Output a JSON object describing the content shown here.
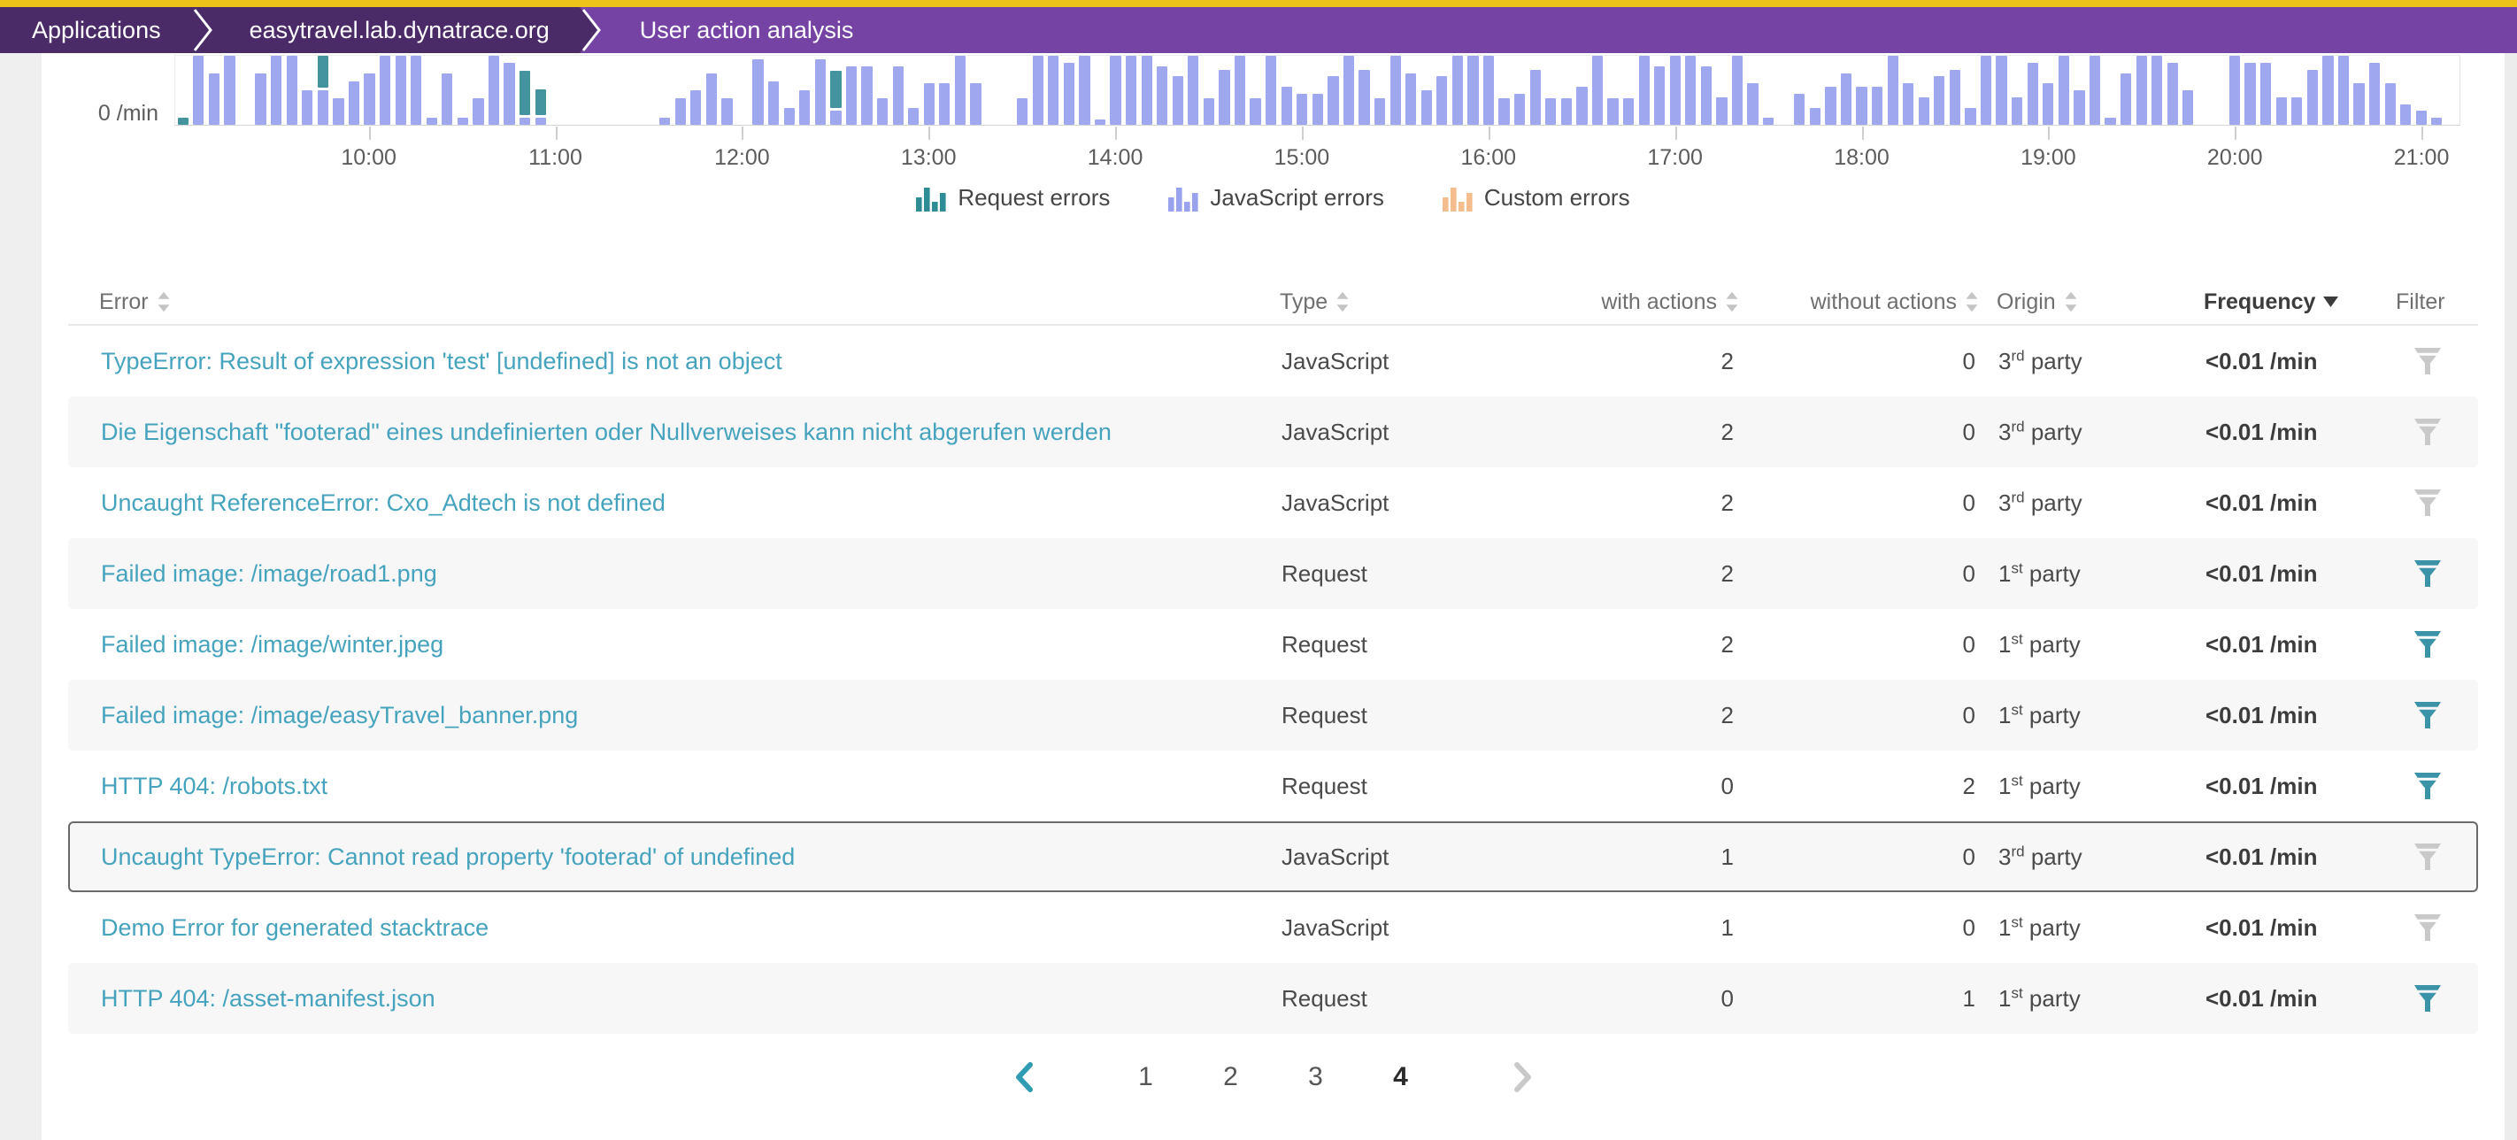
{
  "breadcrumb": {
    "items": [
      {
        "label": "Applications"
      },
      {
        "label": "easytravel.lab.dynatrace.org"
      },
      {
        "label": "User action analysis"
      }
    ]
  },
  "colors": {
    "accent_top": "#edc31a",
    "crumb_dark": "#4b2a68",
    "crumb_active": "#7543a3",
    "javascript_bar": "#9fa8ef",
    "request_bar": "#44949f",
    "custom_bar": "#f3bd8d",
    "link": "#45a3bd",
    "filter_active": "#3a93a6",
    "filter_inactive": "#c9c9c9"
  },
  "chart_data": {
    "type": "bar",
    "stacked": true,
    "y_zero_label": "0 /min",
    "x_ticks": [
      "10:00",
      "11:00",
      "12:00",
      "13:00",
      "14:00",
      "15:00",
      "16:00",
      "17:00",
      "18:00",
      "19:00",
      "20:00",
      "21:00"
    ],
    "series_names": [
      "JavaScript errors",
      "Request errors"
    ],
    "values_unit": "relative_height_pct",
    "bars": [
      [
        0,
        10
      ],
      [
        100,
        0
      ],
      [
        75,
        0
      ],
      [
        100,
        0
      ],
      [
        0,
        0
      ],
      [
        75,
        0
      ],
      [
        100,
        0
      ],
      [
        100,
        0
      ],
      [
        50,
        0
      ],
      [
        50,
        47
      ],
      [
        38,
        0
      ],
      [
        63,
        0
      ],
      [
        75,
        0
      ],
      [
        100,
        0
      ],
      [
        100,
        0
      ],
      [
        100,
        0
      ],
      [
        10,
        0
      ],
      [
        75,
        0
      ],
      [
        10,
        0
      ],
      [
        38,
        0
      ],
      [
        100,
        0
      ],
      [
        90,
        0
      ],
      [
        10,
        65
      ],
      [
        10,
        38
      ],
      [
        0,
        0
      ],
      [
        0,
        0
      ],
      [
        0,
        0
      ],
      [
        0,
        0
      ],
      [
        0,
        0
      ],
      [
        0,
        0
      ],
      [
        0,
        0
      ],
      [
        10,
        0
      ],
      [
        38,
        0
      ],
      [
        50,
        0
      ],
      [
        75,
        0
      ],
      [
        38,
        0
      ],
      [
        0,
        0
      ],
      [
        95,
        0
      ],
      [
        63,
        0
      ],
      [
        25,
        0
      ],
      [
        50,
        0
      ],
      [
        95,
        0
      ],
      [
        20,
        55
      ],
      [
        85,
        0
      ],
      [
        85,
        0
      ],
      [
        38,
        0
      ],
      [
        85,
        0
      ],
      [
        25,
        0
      ],
      [
        60,
        0
      ],
      [
        60,
        0
      ],
      [
        100,
        0
      ],
      [
        60,
        0
      ],
      [
        0,
        0
      ],
      [
        0,
        0
      ],
      [
        38,
        0
      ],
      [
        100,
        0
      ],
      [
        100,
        0
      ],
      [
        90,
        0
      ],
      [
        100,
        0
      ],
      [
        8,
        0
      ],
      [
        100,
        0
      ],
      [
        100,
        0
      ],
      [
        100,
        0
      ],
      [
        85,
        0
      ],
      [
        70,
        0
      ],
      [
        100,
        0
      ],
      [
        38,
        0
      ],
      [
        80,
        0
      ],
      [
        100,
        0
      ],
      [
        38,
        0
      ],
      [
        100,
        0
      ],
      [
        55,
        0
      ],
      [
        45,
        0
      ],
      [
        45,
        0
      ],
      [
        70,
        0
      ],
      [
        100,
        0
      ],
      [
        80,
        0
      ],
      [
        38,
        0
      ],
      [
        100,
        0
      ],
      [
        75,
        0
      ],
      [
        50,
        0
      ],
      [
        70,
        0
      ],
      [
        100,
        0
      ],
      [
        100,
        0
      ],
      [
        100,
        0
      ],
      [
        38,
        0
      ],
      [
        45,
        0
      ],
      [
        80,
        0
      ],
      [
        38,
        0
      ],
      [
        38,
        0
      ],
      [
        55,
        0
      ],
      [
        100,
        0
      ],
      [
        38,
        0
      ],
      [
        38,
        0
      ],
      [
        100,
        0
      ],
      [
        85,
        0
      ],
      [
        100,
        0
      ],
      [
        100,
        0
      ],
      [
        85,
        0
      ],
      [
        40,
        0
      ],
      [
        100,
        0
      ],
      [
        60,
        0
      ],
      [
        10,
        0
      ],
      [
        0,
        0
      ],
      [
        45,
        0
      ],
      [
        25,
        0
      ],
      [
        55,
        0
      ],
      [
        75,
        0
      ],
      [
        55,
        0
      ],
      [
        55,
        0
      ],
      [
        100,
        0
      ],
      [
        60,
        0
      ],
      [
        40,
        0
      ],
      [
        70,
        0
      ],
      [
        80,
        0
      ],
      [
        25,
        0
      ],
      [
        100,
        0
      ],
      [
        100,
        0
      ],
      [
        40,
        0
      ],
      [
        90,
        0
      ],
      [
        60,
        0
      ],
      [
        100,
        0
      ],
      [
        50,
        0
      ],
      [
        100,
        0
      ],
      [
        10,
        0
      ],
      [
        75,
        0
      ],
      [
        100,
        0
      ],
      [
        100,
        0
      ],
      [
        90,
        0
      ],
      [
        50,
        0
      ],
      [
        0,
        0
      ],
      [
        0,
        0
      ],
      [
        100,
        0
      ],
      [
        90,
        0
      ],
      [
        90,
        0
      ],
      [
        40,
        0
      ],
      [
        40,
        0
      ],
      [
        80,
        0
      ],
      [
        100,
        0
      ],
      [
        100,
        0
      ],
      [
        60,
        0
      ],
      [
        90,
        0
      ],
      [
        60,
        0
      ],
      [
        30,
        0
      ],
      [
        20,
        0
      ],
      [
        10,
        0
      ],
      [
        0,
        0
      ]
    ],
    "legend": [
      {
        "label": "Request errors",
        "color": "#2e8d94"
      },
      {
        "label": "JavaScript errors",
        "color": "#99a3ed"
      },
      {
        "label": "Custom errors",
        "color": "#f3bd8d"
      }
    ]
  },
  "table": {
    "columns": [
      {
        "label": "Error",
        "sort": "both"
      },
      {
        "label": "Type",
        "sort": "both"
      },
      {
        "label": "with actions",
        "sort": "both"
      },
      {
        "label": "without actions",
        "sort": "both"
      },
      {
        "label": "Origin",
        "sort": "both"
      },
      {
        "label": "Frequency",
        "sort": "desc"
      },
      {
        "label": "Filter",
        "sort": "none"
      }
    ],
    "rows": [
      {
        "error": "TypeError: Result of expression 'test' [undefined] is not an object",
        "type": "JavaScript",
        "with_actions": "2",
        "without_actions": "0",
        "origin": {
          "n": "3",
          "s": "rd",
          "w": "party"
        },
        "frequency": "<0.01 /min",
        "filter_active": false,
        "selected": false
      },
      {
        "error": "Die Eigenschaft \"footerad\" eines undefinierten oder Nullverweises kann nicht abgerufen werden",
        "type": "JavaScript",
        "with_actions": "2",
        "without_actions": "0",
        "origin": {
          "n": "3",
          "s": "rd",
          "w": "party"
        },
        "frequency": "<0.01 /min",
        "filter_active": false,
        "selected": false
      },
      {
        "error": "Uncaught ReferenceError: Cxo_Adtech is not defined",
        "type": "JavaScript",
        "with_actions": "2",
        "without_actions": "0",
        "origin": {
          "n": "3",
          "s": "rd",
          "w": "party"
        },
        "frequency": "<0.01 /min",
        "filter_active": false,
        "selected": false
      },
      {
        "error": "Failed image: /image/road1.png",
        "type": "Request",
        "with_actions": "2",
        "without_actions": "0",
        "origin": {
          "n": "1",
          "s": "st",
          "w": "party"
        },
        "frequency": "<0.01 /min",
        "filter_active": true,
        "selected": false
      },
      {
        "error": "Failed image: /image/winter.jpeg",
        "type": "Request",
        "with_actions": "2",
        "without_actions": "0",
        "origin": {
          "n": "1",
          "s": "st",
          "w": "party"
        },
        "frequency": "<0.01 /min",
        "filter_active": true,
        "selected": false
      },
      {
        "error": "Failed image: /image/easyTravel_banner.png",
        "type": "Request",
        "with_actions": "2",
        "without_actions": "0",
        "origin": {
          "n": "1",
          "s": "st",
          "w": "party"
        },
        "frequency": "<0.01 /min",
        "filter_active": true,
        "selected": false
      },
      {
        "error": "HTTP 404: /robots.txt",
        "type": "Request",
        "with_actions": "0",
        "without_actions": "2",
        "origin": {
          "n": "1",
          "s": "st",
          "w": "party"
        },
        "frequency": "<0.01 /min",
        "filter_active": true,
        "selected": false
      },
      {
        "error": "Uncaught TypeError: Cannot read property 'footerad' of undefined",
        "type": "JavaScript",
        "with_actions": "1",
        "without_actions": "0",
        "origin": {
          "n": "3",
          "s": "rd",
          "w": "party"
        },
        "frequency": "<0.01 /min",
        "filter_active": false,
        "selected": true
      },
      {
        "error": "Demo Error for generated stacktrace",
        "type": "JavaScript",
        "with_actions": "1",
        "without_actions": "0",
        "origin": {
          "n": "1",
          "s": "st",
          "w": "party"
        },
        "frequency": "<0.01 /min",
        "filter_active": false,
        "selected": false
      },
      {
        "error": "HTTP 404: /asset-manifest.json",
        "type": "Request",
        "with_actions": "0",
        "without_actions": "1",
        "origin": {
          "n": "1",
          "s": "st",
          "w": "party"
        },
        "frequency": "<0.01 /min",
        "filter_active": true,
        "selected": false
      }
    ]
  },
  "pagination": {
    "pages": [
      "1",
      "2",
      "3",
      "4"
    ],
    "current": "4"
  }
}
